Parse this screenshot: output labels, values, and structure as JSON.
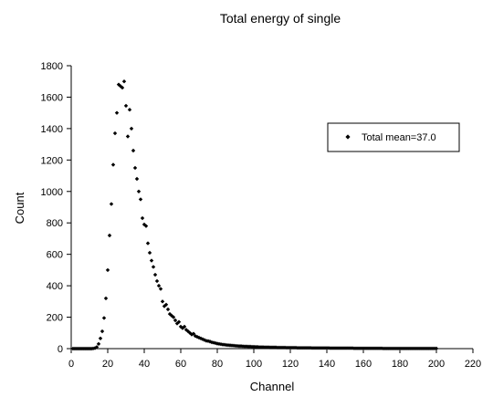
{
  "chart_data": {
    "type": "scatter",
    "title": "Total energy of single",
    "xlabel": "Channel",
    "ylabel": "Count",
    "xlim": [
      0,
      220
    ],
    "ylim": [
      0,
      1800
    ],
    "xticks": [
      0,
      20,
      40,
      60,
      80,
      100,
      120,
      140,
      160,
      180,
      200,
      220
    ],
    "yticks": [
      0,
      200,
      400,
      600,
      800,
      1000,
      1200,
      1400,
      1600,
      1800
    ],
    "grid": false,
    "legend_position": "top-right",
    "marker_color": "#000000",
    "series": [
      {
        "name": "Total mean=37.0",
        "marker": "diamond",
        "points": [
          [
            1,
            0
          ],
          [
            2,
            0
          ],
          [
            3,
            0
          ],
          [
            4,
            0
          ],
          [
            5,
            0
          ],
          [
            6,
            0
          ],
          [
            7,
            0
          ],
          [
            8,
            0
          ],
          [
            9,
            0
          ],
          [
            10,
            0
          ],
          [
            11,
            0
          ],
          [
            12,
            1
          ],
          [
            13,
            3
          ],
          [
            14,
            10
          ],
          [
            15,
            30
          ],
          [
            16,
            65
          ],
          [
            17,
            110
          ],
          [
            18,
            195
          ],
          [
            19,
            320
          ],
          [
            20,
            500
          ],
          [
            21,
            720
          ],
          [
            22,
            920
          ],
          [
            23,
            1170
          ],
          [
            24,
            1370
          ],
          [
            25,
            1500
          ],
          [
            26,
            1680
          ],
          [
            27,
            1670
          ],
          [
            28,
            1660
          ],
          [
            29,
            1700
          ],
          [
            30,
            1545
          ],
          [
            31,
            1350
          ],
          [
            32,
            1520
          ],
          [
            33,
            1400
          ],
          [
            34,
            1260
          ],
          [
            35,
            1150
          ],
          [
            36,
            1080
          ],
          [
            37,
            1000
          ],
          [
            38,
            950
          ],
          [
            39,
            830
          ],
          [
            40,
            790
          ],
          [
            41,
            780
          ],
          [
            42,
            670
          ],
          [
            43,
            610
          ],
          [
            44,
            560
          ],
          [
            45,
            520
          ],
          [
            46,
            470
          ],
          [
            47,
            430
          ],
          [
            48,
            400
          ],
          [
            49,
            380
          ],
          [
            50,
            300
          ],
          [
            51,
            270
          ],
          [
            52,
            280
          ],
          [
            53,
            250
          ],
          [
            54,
            220
          ],
          [
            55,
            210
          ],
          [
            56,
            200
          ],
          [
            57,
            180
          ],
          [
            58,
            160
          ],
          [
            59,
            170
          ],
          [
            60,
            140
          ],
          [
            61,
            130
          ],
          [
            62,
            140
          ],
          [
            63,
            120
          ],
          [
            64,
            110
          ],
          [
            65,
            100
          ],
          [
            66,
            90
          ],
          [
            67,
            95
          ],
          [
            68,
            80
          ],
          [
            69,
            75
          ],
          [
            70,
            70
          ],
          [
            71,
            65
          ],
          [
            72,
            60
          ],
          [
            73,
            55
          ],
          [
            74,
            50
          ],
          [
            75,
            48
          ],
          [
            76,
            45
          ],
          [
            77,
            40
          ],
          [
            78,
            38
          ],
          [
            79,
            35
          ],
          [
            80,
            32
          ],
          [
            81,
            30
          ],
          [
            82,
            28
          ],
          [
            83,
            26
          ],
          [
            84,
            25
          ],
          [
            85,
            23
          ],
          [
            86,
            22
          ],
          [
            87,
            21
          ],
          [
            88,
            20
          ],
          [
            89,
            19
          ],
          [
            90,
            18
          ],
          [
            91,
            17
          ],
          [
            92,
            16
          ],
          [
            93,
            16
          ],
          [
            94,
            15
          ],
          [
            95,
            14
          ],
          [
            96,
            14
          ],
          [
            97,
            13
          ],
          [
            98,
            13
          ],
          [
            99,
            12
          ],
          [
            100,
            12
          ],
          [
            101,
            11
          ],
          [
            102,
            11
          ],
          [
            103,
            10
          ],
          [
            104,
            10
          ],
          [
            105,
            10
          ],
          [
            106,
            9
          ],
          [
            107,
            9
          ],
          [
            108,
            9
          ],
          [
            109,
            8
          ],
          [
            110,
            8
          ],
          [
            111,
            8
          ],
          [
            112,
            8
          ],
          [
            113,
            7
          ],
          [
            114,
            7
          ],
          [
            115,
            7
          ],
          [
            116,
            7
          ],
          [
            117,
            7
          ],
          [
            118,
            6
          ],
          [
            119,
            6
          ],
          [
            120,
            6
          ],
          [
            121,
            6
          ],
          [
            122,
            6
          ],
          [
            123,
            6
          ],
          [
            124,
            5
          ],
          [
            125,
            5
          ],
          [
            126,
            5
          ],
          [
            127,
            5
          ],
          [
            128,
            5
          ],
          [
            129,
            5
          ],
          [
            130,
            5
          ],
          [
            131,
            5
          ],
          [
            132,
            4
          ],
          [
            133,
            4
          ],
          [
            134,
            4
          ],
          [
            135,
            4
          ],
          [
            136,
            4
          ],
          [
            137,
            4
          ],
          [
            138,
            4
          ],
          [
            139,
            4
          ],
          [
            140,
            4
          ],
          [
            141,
            4
          ],
          [
            142,
            3
          ],
          [
            143,
            3
          ],
          [
            144,
            3
          ],
          [
            145,
            3
          ],
          [
            146,
            3
          ],
          [
            147,
            3
          ],
          [
            148,
            3
          ],
          [
            149,
            3
          ],
          [
            150,
            3
          ],
          [
            151,
            3
          ],
          [
            152,
            3
          ],
          [
            153,
            3
          ],
          [
            154,
            3
          ],
          [
            155,
            2
          ],
          [
            156,
            2
          ],
          [
            157,
            2
          ],
          [
            158,
            2
          ],
          [
            159,
            2
          ],
          [
            160,
            2
          ],
          [
            161,
            2
          ],
          [
            162,
            2
          ],
          [
            163,
            2
          ],
          [
            164,
            2
          ],
          [
            165,
            2
          ],
          [
            166,
            2
          ],
          [
            167,
            2
          ],
          [
            168,
            2
          ],
          [
            169,
            2
          ],
          [
            170,
            2
          ],
          [
            171,
            1
          ],
          [
            172,
            1
          ],
          [
            173,
            1
          ],
          [
            174,
            1
          ],
          [
            175,
            1
          ],
          [
            176,
            1
          ],
          [
            177,
            1
          ],
          [
            178,
            1
          ],
          [
            179,
            1
          ],
          [
            180,
            1
          ],
          [
            181,
            1
          ],
          [
            182,
            1
          ],
          [
            183,
            1
          ],
          [
            184,
            1
          ],
          [
            185,
            1
          ],
          [
            186,
            1
          ],
          [
            187,
            1
          ],
          [
            188,
            1
          ],
          [
            189,
            1
          ],
          [
            190,
            1
          ],
          [
            191,
            1
          ],
          [
            192,
            1
          ],
          [
            193,
            1
          ],
          [
            194,
            1
          ],
          [
            195,
            1
          ],
          [
            196,
            1
          ],
          [
            197,
            1
          ],
          [
            198,
            1
          ],
          [
            199,
            1
          ],
          [
            200,
            1
          ]
        ]
      }
    ]
  }
}
